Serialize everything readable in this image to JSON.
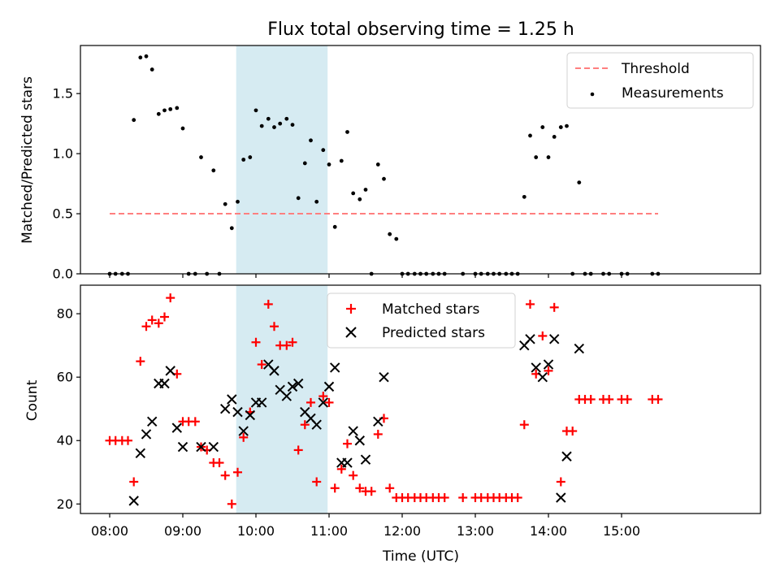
{
  "chart_data": [
    {
      "type": "scatter",
      "title": "Flux total observing time = 1.25 h",
      "ylabel": "Matched/Predicted stars",
      "xlabel": "",
      "xlim": [
        7.6,
        16.9
      ],
      "ylim": [
        0,
        1.9
      ],
      "yticks": [
        0.0,
        0.5,
        1.0,
        1.5
      ],
      "ytick_labels": [
        "0.0",
        "0.5",
        "1.0",
        "1.5"
      ],
      "shaded_span": {
        "start": 9.73,
        "end": 10.98,
        "color": "#add8e6"
      },
      "legend": {
        "placement": "top-right",
        "threshold_label": "Threshold",
        "measurements_label": "Measurements"
      },
      "threshold": {
        "name": "Threshold",
        "y": 0.5,
        "x_start": 8.0,
        "x_end": 15.5,
        "color": "#ff7f7f"
      },
      "series": [
        {
          "name": "Measurements",
          "color": "#000000",
          "points": [
            [
              8.0,
              0
            ],
            [
              8.08,
              0
            ],
            [
              8.17,
              0
            ],
            [
              8.25,
              0
            ],
            [
              8.33,
              1.28
            ],
            [
              8.42,
              1.8
            ],
            [
              8.5,
              1.81
            ],
            [
              8.58,
              1.7
            ],
            [
              8.67,
              1.33
            ],
            [
              8.75,
              1.36
            ],
            [
              8.83,
              1.37
            ],
            [
              8.92,
              1.38
            ],
            [
              9.0,
              1.21
            ],
            [
              9.08,
              0
            ],
            [
              9.17,
              0
            ],
            [
              9.25,
              0.97
            ],
            [
              9.33,
              0
            ],
            [
              9.42,
              0.86
            ],
            [
              9.5,
              0
            ],
            [
              9.58,
              0.58
            ],
            [
              9.67,
              0.38
            ],
            [
              9.75,
              0.6
            ],
            [
              9.83,
              0.95
            ],
            [
              9.92,
              0.97
            ],
            [
              10.0,
              1.36
            ],
            [
              10.08,
              1.23
            ],
            [
              10.17,
              1.29
            ],
            [
              10.25,
              1.22
            ],
            [
              10.33,
              1.25
            ],
            [
              10.42,
              1.29
            ],
            [
              10.5,
              1.24
            ],
            [
              10.58,
              0.63
            ],
            [
              10.67,
              0.92
            ],
            [
              10.75,
              1.11
            ],
            [
              10.83,
              0.6
            ],
            [
              10.92,
              1.03
            ],
            [
              11.0,
              0.91
            ],
            [
              11.08,
              0.39
            ],
            [
              11.17,
              0.94
            ],
            [
              11.25,
              1.18
            ],
            [
              11.33,
              0.67
            ],
            [
              11.42,
              0.62
            ],
            [
              11.5,
              0.7
            ],
            [
              11.58,
              0
            ],
            [
              11.67,
              0.91
            ],
            [
              11.75,
              0.79
            ],
            [
              11.83,
              0.33
            ],
            [
              11.92,
              0.29
            ],
            [
              12.0,
              0
            ],
            [
              12.08,
              0
            ],
            [
              12.17,
              0
            ],
            [
              12.25,
              0
            ],
            [
              12.33,
              0
            ],
            [
              12.42,
              0
            ],
            [
              12.5,
              0
            ],
            [
              12.58,
              0
            ],
            [
              12.83,
              0
            ],
            [
              13.0,
              0
            ],
            [
              13.08,
              0
            ],
            [
              13.17,
              0
            ],
            [
              13.25,
              0
            ],
            [
              13.33,
              0
            ],
            [
              13.42,
              0
            ],
            [
              13.5,
              0
            ],
            [
              13.58,
              0
            ],
            [
              13.67,
              0.64
            ],
            [
              13.75,
              1.15
            ],
            [
              13.83,
              0.97
            ],
            [
              13.92,
              1.22
            ],
            [
              14.0,
              0.97
            ],
            [
              14.08,
              1.14
            ],
            [
              14.17,
              1.22
            ],
            [
              14.25,
              1.23
            ],
            [
              14.33,
              0
            ],
            [
              14.42,
              0.76
            ],
            [
              14.5,
              0
            ],
            [
              14.58,
              0
            ],
            [
              14.75,
              0
            ],
            [
              14.83,
              0
            ],
            [
              15.0,
              0
            ],
            [
              15.08,
              0
            ],
            [
              15.42,
              0
            ],
            [
              15.5,
              0
            ]
          ]
        }
      ]
    },
    {
      "type": "scatter",
      "title": "",
      "xlabel": "Time (UTC)",
      "ylabel": "Count",
      "xlim": [
        7.6,
        16.9
      ],
      "ylim": [
        17,
        89
      ],
      "yticks": [
        20,
        40,
        60,
        80
      ],
      "ytick_labels": [
        "20",
        "40",
        "60",
        "80"
      ],
      "xticks": [
        8,
        9,
        10,
        11,
        12,
        13,
        14,
        15
      ],
      "xtick_labels": [
        "08:00",
        "09:00",
        "10:00",
        "11:00",
        "12:00",
        "13:00",
        "14:00",
        "15:00"
      ],
      "shaded_span": {
        "start": 9.73,
        "end": 10.98,
        "color": "#add8e6"
      },
      "legend": {
        "placement": "top-center",
        "matched_label": "Matched stars",
        "predicted_label": "Predicted stars"
      },
      "series": [
        {
          "name": "Matched stars",
          "marker": "+",
          "color": "#ff0000",
          "points": [
            [
              8.0,
              40
            ],
            [
              8.08,
              40
            ],
            [
              8.17,
              40
            ],
            [
              8.25,
              40
            ],
            [
              8.33,
              27
            ],
            [
              8.42,
              65
            ],
            [
              8.5,
              76
            ],
            [
              8.58,
              78
            ],
            [
              8.67,
              77
            ],
            [
              8.75,
              79
            ],
            [
              8.83,
              85
            ],
            [
              8.92,
              61
            ],
            [
              9.0,
              46
            ],
            [
              9.08,
              46
            ],
            [
              9.17,
              46
            ],
            [
              9.25,
              38
            ],
            [
              9.33,
              37
            ],
            [
              9.42,
              33
            ],
            [
              9.5,
              33
            ],
            [
              9.58,
              29
            ],
            [
              9.67,
              20
            ],
            [
              9.75,
              30
            ],
            [
              9.83,
              41
            ],
            [
              9.92,
              49
            ],
            [
              10.0,
              71
            ],
            [
              10.08,
              64
            ],
            [
              10.17,
              83
            ],
            [
              10.25,
              76
            ],
            [
              10.33,
              70
            ],
            [
              10.42,
              70
            ],
            [
              10.5,
              71
            ],
            [
              10.58,
              37
            ],
            [
              10.67,
              45
            ],
            [
              10.75,
              52
            ],
            [
              10.83,
              27
            ],
            [
              10.92,
              54
            ],
            [
              11.0,
              52
            ],
            [
              11.08,
              25
            ],
            [
              11.17,
              31
            ],
            [
              11.25,
              39
            ],
            [
              11.33,
              29
            ],
            [
              11.42,
              25
            ],
            [
              11.5,
              24
            ],
            [
              11.58,
              24
            ],
            [
              11.67,
              42
            ],
            [
              11.75,
              47
            ],
            [
              11.83,
              25
            ],
            [
              11.92,
              22
            ],
            [
              12.0,
              22
            ],
            [
              12.08,
              22
            ],
            [
              12.17,
              22
            ],
            [
              12.25,
              22
            ],
            [
              12.33,
              22
            ],
            [
              12.42,
              22
            ],
            [
              12.5,
              22
            ],
            [
              12.58,
              22
            ],
            [
              12.83,
              22
            ],
            [
              13.0,
              22
            ],
            [
              13.08,
              22
            ],
            [
              13.17,
              22
            ],
            [
              13.25,
              22
            ],
            [
              13.33,
              22
            ],
            [
              13.42,
              22
            ],
            [
              13.5,
              22
            ],
            [
              13.58,
              22
            ],
            [
              13.67,
              45
            ],
            [
              13.75,
              83
            ],
            [
              13.83,
              61
            ],
            [
              13.92,
              73
            ],
            [
              14.0,
              62
            ],
            [
              14.08,
              82
            ],
            [
              14.17,
              27
            ],
            [
              14.25,
              43
            ],
            [
              14.33,
              43
            ],
            [
              14.42,
              53
            ],
            [
              14.5,
              53
            ],
            [
              14.58,
              53
            ],
            [
              14.75,
              53
            ],
            [
              14.83,
              53
            ],
            [
              15.0,
              53
            ],
            [
              15.08,
              53
            ],
            [
              15.42,
              53
            ],
            [
              15.5,
              53
            ]
          ]
        },
        {
          "name": "Predicted stars",
          "marker": "x",
          "color": "#000000",
          "points": [
            [
              8.33,
              21
            ],
            [
              8.42,
              36
            ],
            [
              8.5,
              42
            ],
            [
              8.58,
              46
            ],
            [
              8.67,
              58
            ],
            [
              8.75,
              58
            ],
            [
              8.83,
              62
            ],
            [
              8.92,
              44
            ],
            [
              9.0,
              38
            ],
            [
              9.25,
              38
            ],
            [
              9.42,
              38
            ],
            [
              9.58,
              50
            ],
            [
              9.67,
              53
            ],
            [
              9.75,
              49
            ],
            [
              9.83,
              43
            ],
            [
              9.92,
              48
            ],
            [
              10.0,
              52
            ],
            [
              10.08,
              52
            ],
            [
              10.17,
              64
            ],
            [
              10.25,
              62
            ],
            [
              10.33,
              56
            ],
            [
              10.42,
              54
            ],
            [
              10.5,
              57
            ],
            [
              10.58,
              58
            ],
            [
              10.67,
              49
            ],
            [
              10.75,
              47
            ],
            [
              10.83,
              45
            ],
            [
              10.92,
              52
            ],
            [
              11.0,
              57
            ],
            [
              11.08,
              63
            ],
            [
              11.17,
              33
            ],
            [
              11.25,
              33
            ],
            [
              11.33,
              43
            ],
            [
              11.42,
              40
            ],
            [
              11.5,
              34
            ],
            [
              11.67,
              46
            ],
            [
              11.75,
              60
            ],
            [
              13.67,
              70
            ],
            [
              13.75,
              72
            ],
            [
              13.83,
              63
            ],
            [
              13.92,
              60
            ],
            [
              14.0,
              64
            ],
            [
              14.08,
              72
            ],
            [
              14.17,
              22
            ],
            [
              14.25,
              35
            ],
            [
              14.42,
              69
            ]
          ]
        }
      ]
    }
  ]
}
